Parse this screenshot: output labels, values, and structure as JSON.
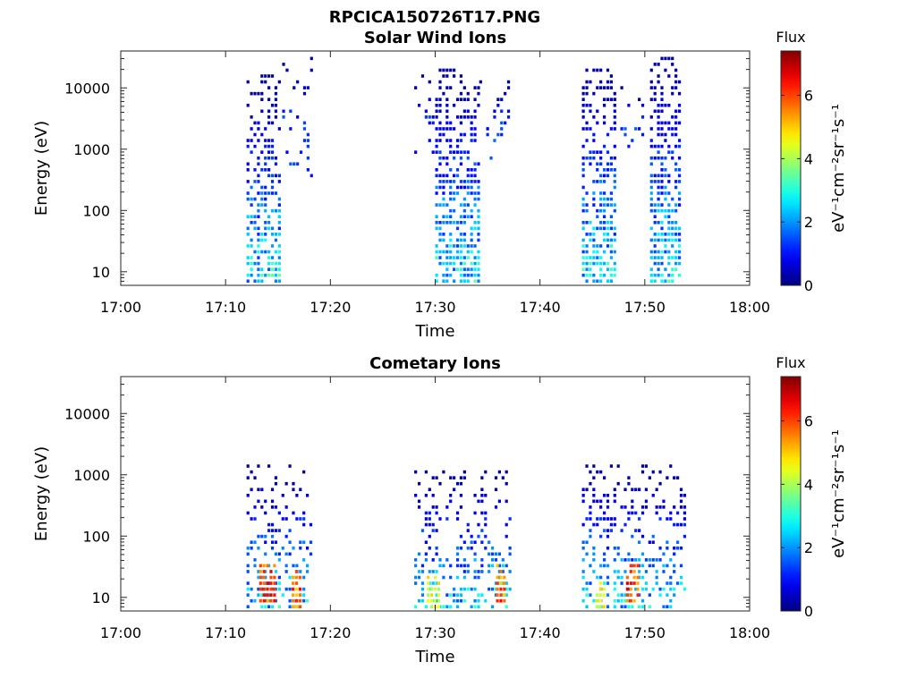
{
  "figure": {
    "title": "RPCICA150726T17.PNG"
  },
  "chart_data": [
    {
      "type": "heatmap",
      "title": "Solar Wind Ions",
      "xlabel": "Time",
      "ylabel": "Energy (eV)",
      "x_range": [
        "17:00",
        "18:00"
      ],
      "x_ticks": [
        "17:00",
        "17:10",
        "17:20",
        "17:30",
        "17:40",
        "17:50",
        "18:00"
      ],
      "y_scale": "log",
      "y_range": [
        6,
        40000
      ],
      "y_ticks": [
        10,
        100,
        1000,
        10000
      ],
      "y_tick_labels": [
        "10",
        "100",
        "1000",
        "10000"
      ],
      "grid": false,
      "colorbar": {
        "title": "Flux",
        "label": "eV⁻¹cm⁻²sr⁻¹s⁻¹",
        "range": [
          0,
          7.4
        ],
        "ticks": [
          0,
          2,
          4,
          6
        ],
        "tick_labels": [
          "0",
          "2",
          "4",
          "6"
        ],
        "colormap": "jet"
      },
      "clusters": [
        {
          "t_start": "17:12",
          "t_end": "17:15.2",
          "e_low": 6,
          "e_high": 15000,
          "peak_flux": 3.2,
          "peak_energy": 10,
          "spread": "dense"
        },
        {
          "t_start": "17:15.4",
          "t_end": "17:18.2",
          "e_low": 300,
          "e_high": 30000,
          "peak_flux": 1.6,
          "peak_energy": 3000,
          "spread": "sparse"
        },
        {
          "t_start": "17:28",
          "t_end": "17:30",
          "e_low": 600,
          "e_high": 15000,
          "peak_flux": 1.5,
          "peak_energy": 3000,
          "spread": "sparse"
        },
        {
          "t_start": "17:30",
          "t_end": "17:34.2",
          "e_low": 6,
          "e_high": 22000,
          "peak_flux": 3.2,
          "peak_energy": 10,
          "spread": "dense"
        },
        {
          "t_start": "17:34.2",
          "t_end": "17:37.2",
          "e_low": 600,
          "e_high": 12000,
          "peak_flux": 1.6,
          "peak_energy": 2500,
          "spread": "sparse"
        },
        {
          "t_start": "17:44",
          "t_end": "17:47.2",
          "e_low": 6,
          "e_high": 20000,
          "peak_flux": 3.2,
          "peak_energy": 10,
          "spread": "dense"
        },
        {
          "t_start": "17:47",
          "t_end": "17:50",
          "e_low": 800,
          "e_high": 12000,
          "peak_flux": 1.6,
          "peak_energy": 2000,
          "spread": "sparse"
        },
        {
          "t_start": "17:50.5",
          "t_end": "17:53.5",
          "e_low": 6,
          "e_high": 30000,
          "peak_flux": 3.2,
          "peak_energy": 10,
          "spread": "dense"
        }
      ]
    },
    {
      "type": "heatmap",
      "title": "Cometary Ions",
      "xlabel": "Time",
      "ylabel": "Energy (eV)",
      "x_range": [
        "17:00",
        "18:00"
      ],
      "x_ticks": [
        "17:00",
        "17:10",
        "17:20",
        "17:30",
        "17:40",
        "17:50",
        "18:00"
      ],
      "y_scale": "log",
      "y_range": [
        6,
        40000
      ],
      "y_ticks": [
        10,
        100,
        1000,
        10000
      ],
      "y_tick_labels": [
        "10",
        "100",
        "1000",
        "10000"
      ],
      "grid": false,
      "colorbar": {
        "title": "Flux",
        "label": "eV⁻¹cm⁻²sr⁻¹s⁻¹",
        "range": [
          0,
          7.4
        ],
        "ticks": [
          0,
          2,
          4,
          6
        ],
        "tick_labels": [
          "0",
          "2",
          "4",
          "6"
        ],
        "colormap": "jet"
      },
      "clusters": [
        {
          "t_start": "17:12",
          "t_end": "17:18.3",
          "e_low": 6,
          "e_high": 1500,
          "peak_flux": 3.0,
          "peak_energy": 10,
          "spread": "medium"
        },
        {
          "t_start": "17:13.2",
          "t_end": "17:14.7",
          "e_low": 8,
          "e_high": 35,
          "peak_flux": 6.8,
          "peak_energy": 20,
          "spread": "core"
        },
        {
          "t_start": "17:16.3",
          "t_end": "17:17.3",
          "e_low": 6,
          "e_high": 30,
          "peak_flux": 6.5,
          "peak_energy": 15,
          "spread": "core"
        },
        {
          "t_start": "17:28",
          "t_end": "17:37.3",
          "e_low": 6,
          "e_high": 1300,
          "peak_flux": 3.0,
          "peak_energy": 10,
          "spread": "medium"
        },
        {
          "t_start": "17:29.2",
          "t_end": "17:30.4",
          "e_low": 6,
          "e_high": 25,
          "peak_flux": 5.0,
          "peak_energy": 10,
          "spread": "core"
        },
        {
          "t_start": "17:35.8",
          "t_end": "17:36.8",
          "e_low": 8,
          "e_high": 35,
          "peak_flux": 6.5,
          "peak_energy": 15,
          "spread": "core"
        },
        {
          "t_start": "17:44",
          "t_end": "17:54",
          "e_low": 6,
          "e_high": 1500,
          "peak_flux": 3.0,
          "peak_energy": 10,
          "spread": "medium"
        },
        {
          "t_start": "17:45.3",
          "t_end": "17:46.2",
          "e_low": 6,
          "e_high": 20,
          "peak_flux": 5.0,
          "peak_energy": 10,
          "spread": "core"
        },
        {
          "t_start": "17:48.2",
          "t_end": "17:49.4",
          "e_low": 8,
          "e_high": 35,
          "peak_flux": 6.8,
          "peak_energy": 15,
          "spread": "core"
        }
      ]
    }
  ]
}
